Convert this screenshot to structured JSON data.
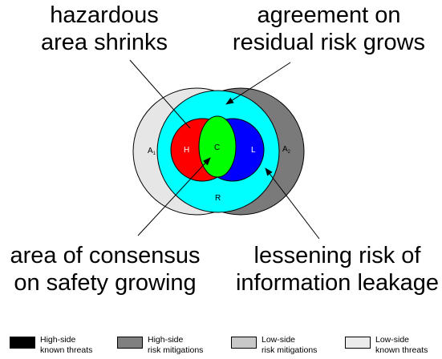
{
  "captions": {
    "top_left": [
      "hazardous",
      "area shrinks"
    ],
    "top_right": [
      "agreement on",
      "residual risk grows"
    ],
    "bottom_left": [
      "area of consensus",
      "on safety growing"
    ],
    "bottom_right": [
      "lessening risk of",
      "information leakage"
    ]
  },
  "regions": {
    "a1": {
      "letter": "A",
      "sub": "1"
    },
    "a2": {
      "letter": "A",
      "sub": "2"
    },
    "h": "H",
    "c": "C",
    "l": "L",
    "r": "R"
  },
  "colors": {
    "outer_left": "#e6e6e6",
    "outer_right": "#7a7a7a",
    "cyan": "#00ffff",
    "red": "#ff0000",
    "blue": "#0000ff",
    "green": "#00ff00"
  },
  "legend": [
    {
      "line1": "High-side",
      "line2": "known threats",
      "color": "#000000"
    },
    {
      "line1": "High-side",
      "line2": "risk mitigations",
      "color": "#808080"
    },
    {
      "line1": "Low-side",
      "line2": "risk mitigations",
      "color": "#c8c8c8"
    },
    {
      "line1": "Low-side",
      "line2": "known threats",
      "color": "#ececec"
    }
  ]
}
